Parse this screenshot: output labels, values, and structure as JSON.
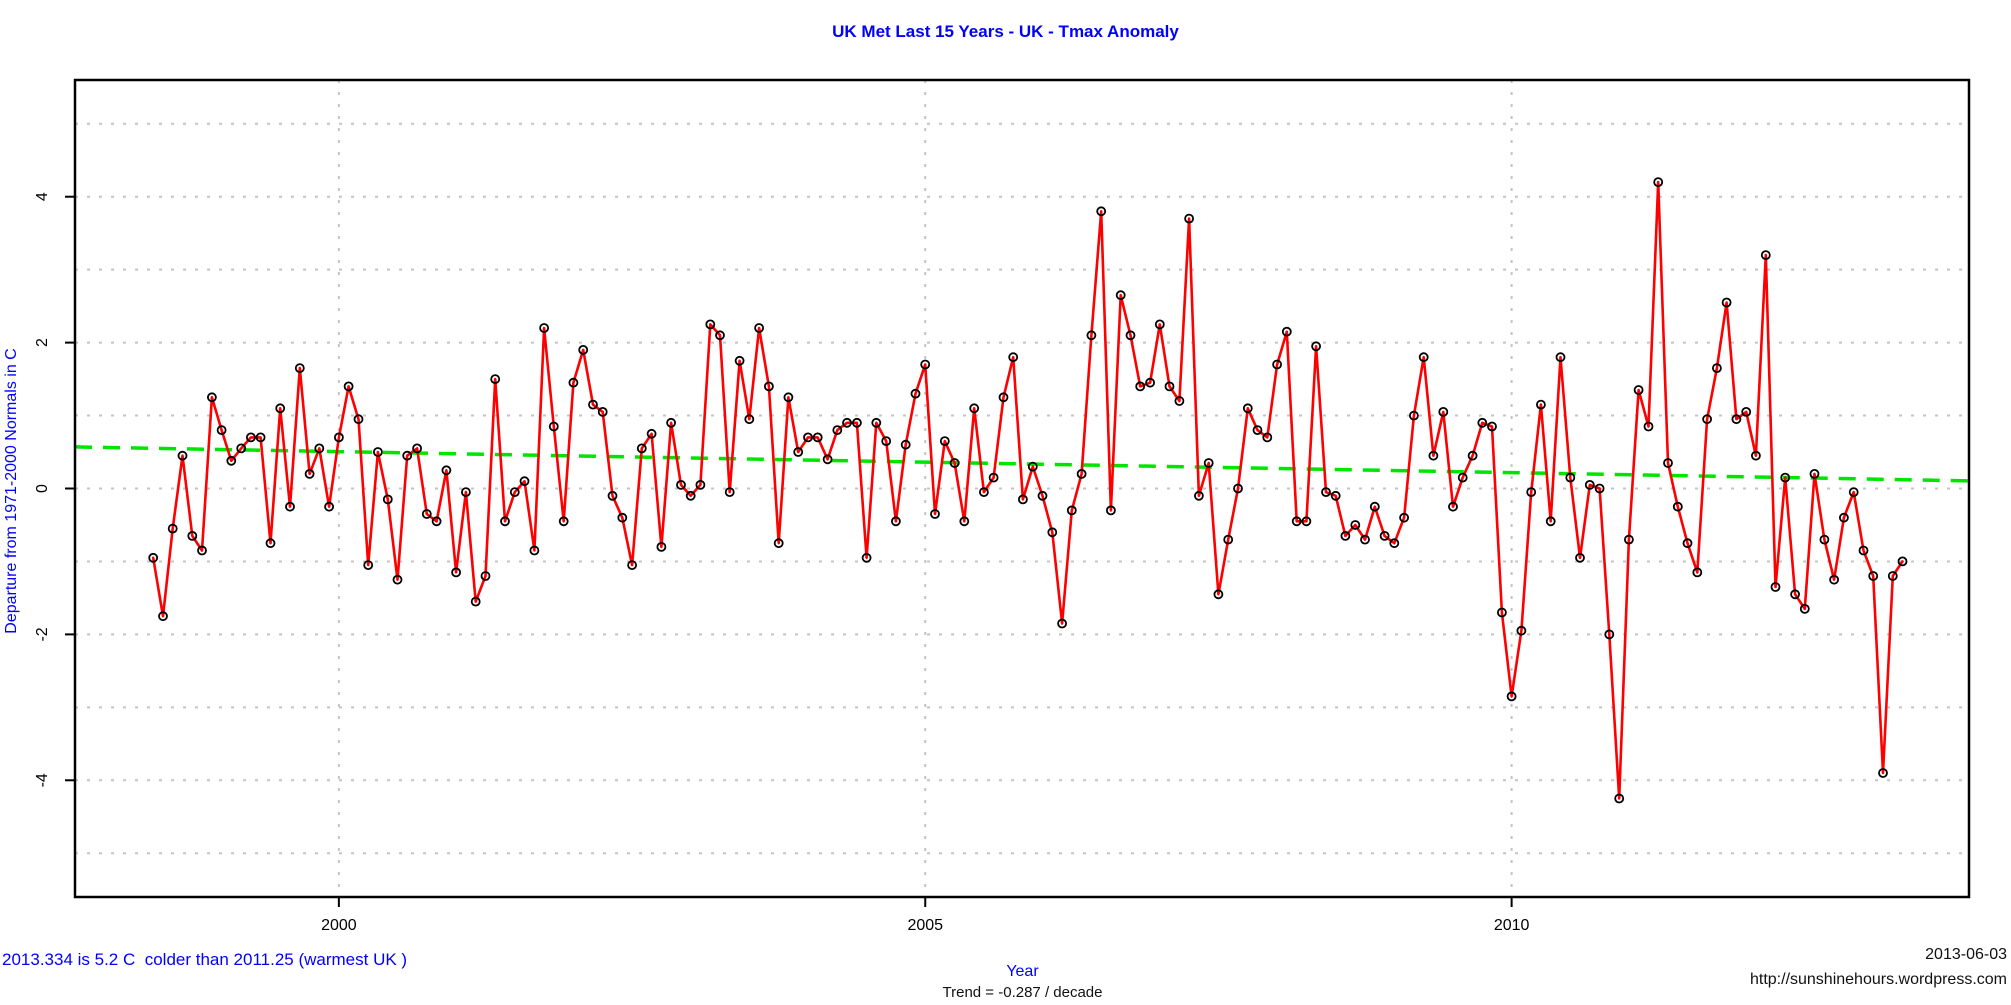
{
  "header": {
    "title": "UK Met Last 15 Years - UK - Tmax Anomaly"
  },
  "annotations": {
    "bottom_left_note": "2013.334 is 5.2 C  colder than 2011.25 (warmest UK )",
    "trend_label": "Trend = -0.287 / decade",
    "date": "2013-06-03",
    "url": "http://sunshinehours.wordpress.com"
  },
  "colors": {
    "title_blue": "#0000ff",
    "series_red": "#ff0000",
    "trend_green": "#00e500",
    "grid_gray": "#c4c4c4",
    "axis_black": "#000000"
  },
  "chart_data": {
    "type": "line",
    "title": "UK Met Last 15 Years - UK - Tmax Anomaly",
    "xlabel": "Year",
    "ylabel": "Departure from 1971-2000 Normals in C",
    "xlim": [
      1997.75,
      2013.9
    ],
    "ylim": [
      -5.6,
      5.6
    ],
    "x_ticks": [
      2000,
      2005,
      2010
    ],
    "y_ticks": [
      -4,
      -2,
      0,
      2,
      4
    ],
    "grid_y": [
      -5,
      -4,
      -3,
      -2,
      -1,
      0,
      1,
      2,
      3,
      4,
      5
    ],
    "grid_x": [
      2000,
      2005,
      2010
    ],
    "legend_position": "none",
    "grid": true,
    "trend_line": {
      "x1": 1997.75,
      "y1": 0.57,
      "x2": 2013.9,
      "y2": 0.105,
      "label": "Trend = -0.287 / decade"
    },
    "x": [
      1998.417,
      1998.5,
      1998.583,
      1998.667,
      1998.75,
      1998.833,
      1998.917,
      1999.0,
      1999.083,
      1999.167,
      1999.25,
      1999.333,
      1999.417,
      1999.5,
      1999.583,
      1999.667,
      1999.75,
      1999.833,
      1999.917,
      2000.0,
      2000.083,
      2000.167,
      2000.25,
      2000.333,
      2000.417,
      2000.5,
      2000.583,
      2000.667,
      2000.75,
      2000.833,
      2000.917,
      2001.0,
      2001.083,
      2001.167,
      2001.25,
      2001.333,
      2001.417,
      2001.5,
      2001.583,
      2001.667,
      2001.75,
      2001.833,
      2001.917,
      2002.0,
      2002.083,
      2002.167,
      2002.25,
      2002.333,
      2002.417,
      2002.5,
      2002.583,
      2002.667,
      2002.75,
      2002.833,
      2002.917,
      2003.0,
      2003.083,
      2003.167,
      2003.25,
      2003.333,
      2003.417,
      2003.5,
      2003.583,
      2003.667,
      2003.75,
      2003.833,
      2003.917,
      2004.0,
      2004.083,
      2004.167,
      2004.25,
      2004.333,
      2004.417,
      2004.5,
      2004.583,
      2004.667,
      2004.75,
      2004.833,
      2004.917,
      2005.0,
      2005.083,
      2005.167,
      2005.25,
      2005.333,
      2005.417,
      2005.5,
      2005.583,
      2005.667,
      2005.75,
      2005.833,
      2005.917,
      2006.0,
      2006.083,
      2006.167,
      2006.25,
      2006.333,
      2006.417,
      2006.5,
      2006.583,
      2006.667,
      2006.75,
      2006.833,
      2006.917,
      2007.0,
      2007.083,
      2007.167,
      2007.25,
      2007.333,
      2007.417,
      2007.5,
      2007.583,
      2007.667,
      2007.75,
      2007.833,
      2007.917,
      2008.0,
      2008.083,
      2008.167,
      2008.25,
      2008.333,
      2008.417,
      2008.5,
      2008.583,
      2008.667,
      2008.75,
      2008.833,
      2008.917,
      2009.0,
      2009.083,
      2009.167,
      2009.25,
      2009.333,
      2009.417,
      2009.5,
      2009.583,
      2009.667,
      2009.75,
      2009.833,
      2009.917,
      2010.0,
      2010.083,
      2010.167,
      2010.25,
      2010.333,
      2010.417,
      2010.5,
      2010.583,
      2010.667,
      2010.75,
      2010.833,
      2010.917,
      2011.0,
      2011.083,
      2011.167,
      2011.25,
      2011.333,
      2011.417,
      2011.5,
      2011.583,
      2011.667,
      2011.75,
      2011.833,
      2011.917,
      2012.0,
      2012.083,
      2012.167,
      2012.25,
      2012.333,
      2012.417,
      2012.5,
      2012.583,
      2012.667,
      2012.75,
      2012.833,
      2012.917,
      2013.0,
      2013.083,
      2013.167,
      2013.25,
      2013.333
    ],
    "values": [
      -0.95,
      -1.75,
      -0.55,
      0.45,
      -0.65,
      -0.85,
      1.25,
      0.8,
      0.38,
      0.55,
      0.7,
      0.7,
      -0.75,
      1.1,
      -0.25,
      1.65,
      0.2,
      0.55,
      -0.25,
      0.7,
      1.4,
      0.95,
      -1.05,
      0.5,
      -0.15,
      -1.25,
      0.45,
      0.55,
      -0.35,
      -0.45,
      0.25,
      -1.15,
      -0.05,
      -1.55,
      -1.2,
      1.5,
      -0.45,
      -0.05,
      0.1,
      -0.85,
      2.2,
      0.85,
      -0.45,
      1.45,
      1.9,
      1.15,
      1.05,
      -0.1,
      -0.4,
      -1.05,
      0.55,
      0.75,
      -0.8,
      0.9,
      0.05,
      -0.1,
      0.05,
      2.25,
      2.1,
      -0.05,
      1.75,
      0.95,
      2.2,
      1.4,
      -0.75,
      1.25,
      0.5,
      0.7,
      0.7,
      0.4,
      0.8,
      0.9,
      0.9,
      -0.95,
      0.9,
      0.65,
      -0.45,
      0.6,
      1.3,
      1.7,
      -0.35,
      0.65,
      0.35,
      -0.45,
      1.1,
      -0.05,
      0.15,
      1.25,
      1.8,
      -0.15,
      0.3,
      -0.1,
      -0.6,
      -1.85,
      -0.3,
      0.2,
      2.1,
      3.8,
      -0.3,
      2.65,
      2.1,
      1.4,
      1.45,
      2.25,
      1.4,
      1.2,
      3.7,
      -0.1,
      0.35,
      -1.45,
      -0.7,
      0.0,
      1.1,
      0.8,
      0.7,
      1.7,
      2.15,
      -0.45,
      -0.45,
      1.95,
      -0.05,
      -0.1,
      -0.65,
      -0.5,
      -0.7,
      -0.25,
      -0.65,
      -0.75,
      -0.4,
      1.0,
      1.8,
      0.45,
      1.05,
      -0.25,
      0.15,
      0.45,
      0.9,
      0.85,
      -1.7,
      -2.85,
      -1.95,
      -0.05,
      1.15,
      -0.45,
      1.8,
      0.15,
      -0.95,
      0.05,
      0.0,
      -2.0,
      -4.25,
      -0.7,
      1.35,
      0.85,
      4.2,
      0.35,
      -0.25,
      -0.75,
      -1.15,
      0.95,
      1.65,
      2.55,
      0.95,
      1.05,
      0.45,
      3.2,
      -1.35,
      0.15,
      -1.45,
      -1.65,
      0.2,
      -0.7,
      -1.25,
      -0.4,
      -0.05,
      -0.85,
      -1.2,
      -3.9,
      -1.2,
      -1.0
    ]
  }
}
